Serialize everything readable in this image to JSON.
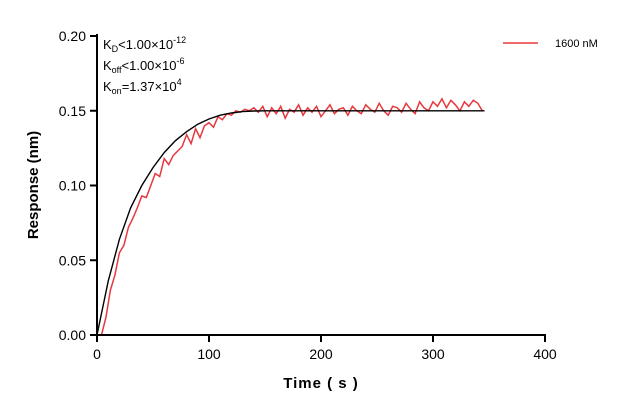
{
  "chart_data": {
    "type": "line",
    "xlabel": "Time ( s )",
    "ylabel": "Response (nm)",
    "xlim": [
      0,
      400
    ],
    "ylim": [
      0,
      0.2
    ],
    "xticks": [
      "0",
      "100",
      "200",
      "300",
      "400"
    ],
    "yticks": [
      "0.00",
      "0.05",
      "0.10",
      "0.15",
      "0.20"
    ],
    "grid": false,
    "legend_placement": "top-right",
    "annotations": [
      {
        "base": "K",
        "sub": "D",
        "rel": "<1.00×10",
        "sup": "-12"
      },
      {
        "base": "K",
        "sub": "off",
        "rel": "<1.00×10",
        "sup": "-6"
      },
      {
        "base": "K",
        "sub": "on",
        "rel": "=1.37×10",
        "sup": "4"
      }
    ],
    "series": [
      {
        "name": "1600 nM",
        "color": "#e8383d",
        "x": [
          0,
          4,
          8,
          12,
          16,
          20,
          24,
          28,
          32,
          36,
          40,
          44,
          48,
          52,
          56,
          60,
          64,
          68,
          72,
          76,
          80,
          84,
          88,
          92,
          96,
          100,
          104,
          108,
          112,
          116,
          120,
          124,
          128,
          132,
          136,
          140,
          144,
          148,
          152,
          156,
          160,
          164,
          168,
          172,
          176,
          180,
          184,
          188,
          192,
          196,
          200,
          204,
          208,
          212,
          216,
          220,
          224,
          228,
          232,
          236,
          240,
          244,
          248,
          252,
          256,
          260,
          264,
          268,
          272,
          276,
          280,
          284,
          288,
          292,
          296,
          300,
          304,
          308,
          312,
          316,
          320,
          324,
          328,
          332,
          336,
          340,
          344
        ],
        "y": [
          0,
          0.0,
          0.012,
          0.03,
          0.04,
          0.055,
          0.06,
          0.072,
          0.078,
          0.085,
          0.093,
          0.092,
          0.1,
          0.108,
          0.106,
          0.118,
          0.114,
          0.12,
          0.123,
          0.126,
          0.134,
          0.128,
          0.138,
          0.132,
          0.14,
          0.142,
          0.139,
          0.146,
          0.144,
          0.148,
          0.147,
          0.15,
          0.149,
          0.151,
          0.15,
          0.152,
          0.149,
          0.153,
          0.146,
          0.152,
          0.148,
          0.153,
          0.145,
          0.151,
          0.149,
          0.154,
          0.147,
          0.152,
          0.149,
          0.153,
          0.146,
          0.15,
          0.154,
          0.148,
          0.151,
          0.152,
          0.147,
          0.153,
          0.15,
          0.148,
          0.154,
          0.151,
          0.149,
          0.155,
          0.15,
          0.147,
          0.153,
          0.152,
          0.149,
          0.155,
          0.151,
          0.148,
          0.156,
          0.152,
          0.15,
          0.156,
          0.153,
          0.158,
          0.152,
          0.157,
          0.154,
          0.15,
          0.156,
          0.153,
          0.157,
          0.155,
          0.15
        ]
      },
      {
        "color": "#000000",
        "x": [
          0,
          10,
          20,
          30,
          40,
          50,
          60,
          70,
          80,
          90,
          100,
          110,
          120,
          130,
          140,
          150,
          346
        ],
        "y": [
          0,
          0.036,
          0.064,
          0.085,
          0.1,
          0.112,
          0.122,
          0.13,
          0.136,
          0.141,
          0.1445,
          0.147,
          0.1485,
          0.1494,
          0.1498,
          0.15,
          0.15
        ]
      }
    ]
  }
}
